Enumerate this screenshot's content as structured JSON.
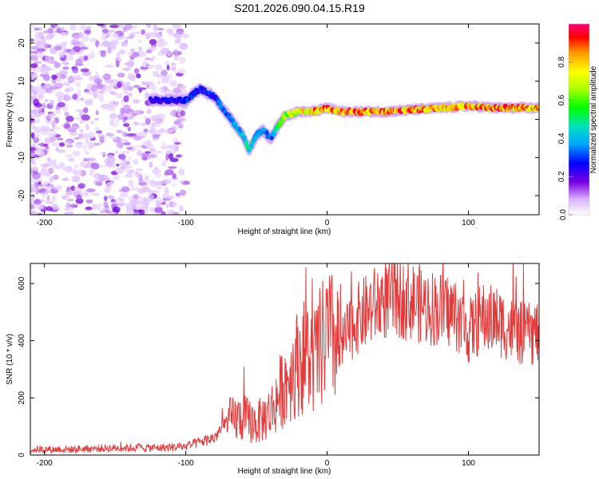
{
  "title": "S201.2026.090.04.15.R19",
  "chart_data": [
    {
      "type": "heatmap",
      "xlabel": "Height of straight line (km)",
      "ylabel": "Frequency (Hz)",
      "xlim": [
        -210,
        150
      ],
      "ylim": [
        -25,
        25
      ],
      "xticks": [
        -200,
        -100,
        0,
        100
      ],
      "yticks": [
        20,
        10,
        0,
        -10,
        -20
      ],
      "colorbar": {
        "label": "Normalized spectral amplitude",
        "range": [
          0.0,
          1.0
        ],
        "ticks": [
          "0.0",
          "0.2",
          "0.4",
          "0.6",
          "0.8"
        ],
        "tick_values": [
          0.0,
          0.2,
          0.4,
          0.6,
          0.8
        ]
      },
      "ridge": {
        "name": "dominant frequency track",
        "x": [
          -120,
          -100,
          -90,
          -80,
          -70,
          -60,
          -55,
          -50,
          -45,
          -40,
          -35,
          -30,
          -20,
          -10,
          0,
          10,
          20,
          40,
          60,
          80,
          100,
          120,
          150
        ],
        "freq": [
          5,
          5,
          8,
          6,
          1,
          -4,
          -8,
          -4,
          -3,
          -5,
          -2,
          1,
          2,
          2,
          3,
          2,
          2,
          2,
          2.5,
          3,
          3.5,
          3,
          3
        ],
        "amplitude": [
          0.25,
          0.3,
          0.3,
          0.3,
          0.35,
          0.45,
          0.5,
          0.45,
          0.4,
          0.35,
          0.5,
          0.7,
          0.8,
          0.85,
          0.9,
          0.9,
          0.9,
          0.9,
          0.9,
          0.9,
          0.9,
          0.9,
          0.9
        ]
      }
    },
    {
      "type": "line",
      "xlabel": "Height of straight line (km)",
      "ylabel": "SNR (10 * v/v)",
      "xlim": [
        -210,
        150
      ],
      "ylim": [
        0,
        670
      ],
      "xticks": [
        -200,
        -100,
        0,
        100
      ],
      "yticks": [
        0,
        200,
        400,
        600
      ],
      "color": "#e53a3a",
      "series": [
        {
          "name": "SNR",
          "x": [
            -210,
            -180,
            -150,
            -120,
            -100,
            -80,
            -70,
            -60,
            -50,
            -40,
            -30,
            -20,
            -15,
            -10,
            0,
            10,
            20,
            30,
            40,
            50,
            60,
            70,
            80,
            90,
            100,
            110,
            120,
            130,
            140,
            150
          ],
          "y": [
            20,
            20,
            25,
            25,
            30,
            60,
            120,
            130,
            110,
            150,
            250,
            330,
            350,
            320,
            420,
            380,
            470,
            510,
            545,
            550,
            540,
            520,
            510,
            500,
            430,
            480,
            470,
            440,
            420,
            430
          ]
        }
      ]
    }
  ]
}
